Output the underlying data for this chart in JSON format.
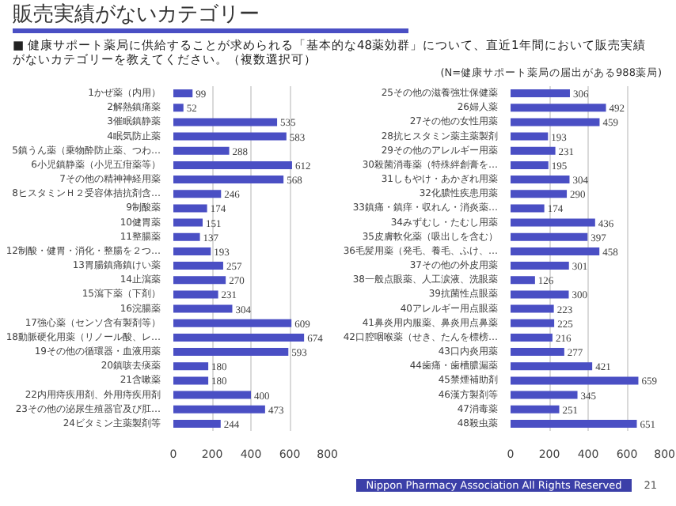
{
  "chart_data": [
    {
      "type": "bar",
      "orientation": "horizontal",
      "title": "販売実績がないカテゴリー",
      "subtitle": "■ 健康サポート薬局に供給することが求められる「基本的な48薬効群」について、直近1年間において販売実績がないカテゴリーを教えてください。（複数選択可）",
      "annotations": [
        "(N=健康サポート薬局の届出がある988薬局)"
      ],
      "categories": [
        "1かぜ薬（内用）",
        "2解熱鎮痛薬",
        "3催眠鎮静薬",
        "4眠気防止薬",
        "5鎮うん薬（乗物酔防止薬、つわ…",
        "6小児鎮静薬（小児五疳薬等）",
        "7その他の精神神経用薬",
        "8ヒスタミンＨ２受容体拮抗剤含…",
        "9制酸薬",
        "10健胃薬",
        "11整腸薬",
        "12制酸・健胃・消化・整腸を２つ…",
        "13胃腸鎮痛鎮けい薬",
        "14止瀉薬",
        "15瀉下薬（下剤）",
        "16浣腸薬",
        "17強心薬（センソ含有製剤等）",
        "18動脈硬化用薬（リノール酸、レ…",
        "19その他の循環器・血液用薬",
        "20鎮咳去痰薬",
        "21含嗽薬",
        "22内用痔疾用剤、外用痔疾用剤",
        "23その他の泌尿生殖器官及び肛…",
        "24ビタミン主薬製剤等"
      ],
      "values": [
        99,
        52,
        535,
        583,
        288,
        612,
        568,
        246,
        174,
        151,
        137,
        193,
        257,
        270,
        231,
        304,
        609,
        674,
        593,
        180,
        180,
        400,
        473,
        244
      ],
      "color": "#4a4fc4",
      "xlim": [
        0,
        800
      ],
      "xticks": [
        0,
        200,
        400,
        600,
        800
      ],
      "grid": "x",
      "data_labels": true
    },
    {
      "type": "bar",
      "orientation": "horizontal",
      "annotations": [
        "Nippon Pharmacy Association All Rights Reserved",
        "21"
      ],
      "categories": [
        "25その他の滋養強壮保健薬",
        "26婦人薬",
        "27その他の女性用薬",
        "28抗ヒスタミン薬主薬製剤",
        "29その他のアレルギー用薬",
        "30殺菌消毒薬（特殊絆創膏を…",
        "31しもやけ・あかぎれ用薬",
        "32化膿性疾患用薬",
        "33鎮痛・鎮痒・収れん・消炎薬…",
        "34みずむし・たむし用薬",
        "35皮膚軟化薬（吸出しを含む）",
        "36毛髪用薬（発毛、養毛、ふけ、…",
        "37その他の外皮用薬",
        "38一般点眼薬、人工涙液、洗眼薬",
        "39抗菌性点眼薬",
        "40アレルギー用点眼薬",
        "41鼻炎用内服薬、鼻炎用点鼻薬",
        "42口腔咽喉薬（せき、たんを標榜…",
        "43口内炎用薬",
        "44歯痛・歯槽膿漏薬",
        "45禁煙補助剤",
        "46漢方製剤等",
        "47消毒薬",
        "48殺虫薬"
      ],
      "values": [
        306,
        492,
        459,
        193,
        231,
        195,
        304,
        290,
        174,
        436,
        397,
        458,
        301,
        126,
        300,
        223,
        225,
        216,
        277,
        421,
        659,
        345,
        251,
        651
      ],
      "color": "#4a4fc4",
      "xlim": [
        0,
        800
      ],
      "xticks": [
        0,
        200,
        400,
        600,
        800
      ],
      "grid": "x",
      "data_labels": true
    }
  ]
}
